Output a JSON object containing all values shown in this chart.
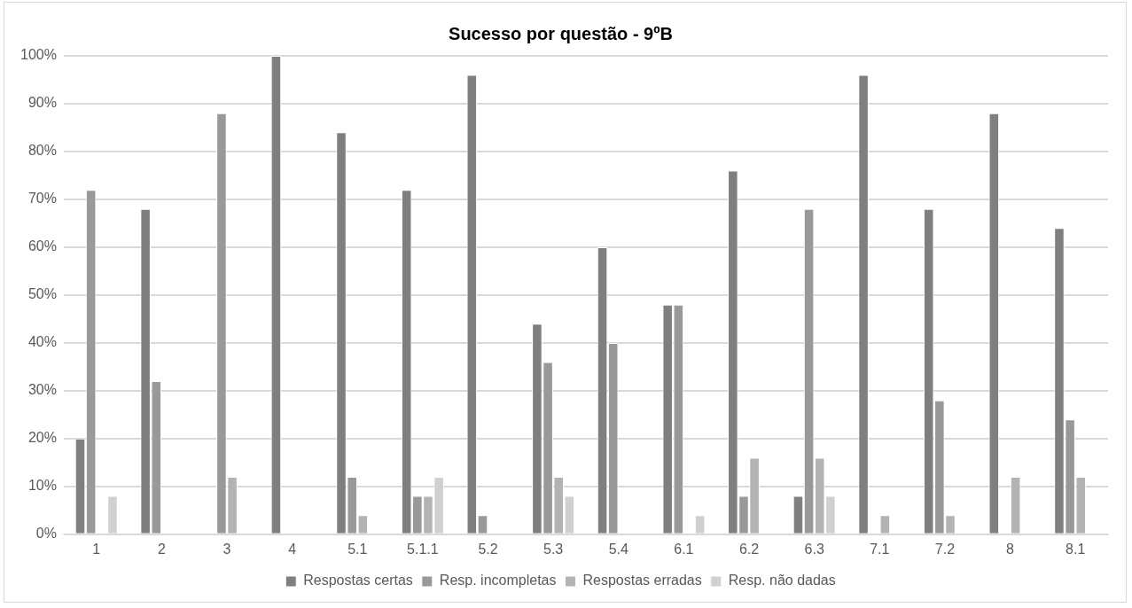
{
  "chart_data": {
    "type": "bar",
    "title": "Sucesso por questão - 9ºB",
    "categories": [
      "1",
      "2",
      "3",
      "4",
      "5.1",
      "5.1.1",
      "5.2",
      "5.3",
      "5.4",
      "6.1",
      "6.2",
      "6.3",
      "7.1",
      "7.2",
      "8",
      "8.1"
    ],
    "series": [
      {
        "name": "Respostas certas",
        "color": "#7f7f7f",
        "values": [
          20,
          68,
          0,
          100,
          84,
          72,
          96,
          44,
          60,
          48,
          76,
          8,
          96,
          68,
          88,
          64
        ]
      },
      {
        "name": "Resp. incompletas",
        "color": "#999999",
        "values": [
          72,
          32,
          88,
          0,
          12,
          8,
          4,
          36,
          40,
          48,
          8,
          68,
          0,
          28,
          0,
          24
        ]
      },
      {
        "name": "Respostas erradas",
        "color": "#b3b3b3",
        "values": [
          0,
          0,
          12,
          0,
          4,
          8,
          0,
          12,
          0,
          0,
          16,
          16,
          4,
          4,
          12,
          12
        ]
      },
      {
        "name": "Resp. não dadas",
        "color": "#d0d0d0",
        "values": [
          8,
          0,
          0,
          0,
          0,
          12,
          0,
          8,
          0,
          4,
          0,
          8,
          0,
          0,
          0,
          0
        ]
      }
    ],
    "ylim": [
      0,
      100
    ],
    "yticks": [
      {
        "value": 0,
        "label": "0%"
      },
      {
        "value": 10,
        "label": "10%"
      },
      {
        "value": 20,
        "label": "20%"
      },
      {
        "value": 30,
        "label": "30%"
      },
      {
        "value": 40,
        "label": "40%"
      },
      {
        "value": 50,
        "label": "50%"
      },
      {
        "value": 60,
        "label": "60%"
      },
      {
        "value": 70,
        "label": "70%"
      },
      {
        "value": 80,
        "label": "80%"
      },
      {
        "value": 90,
        "label": "90%"
      },
      {
        "value": 100,
        "label": "100%"
      }
    ],
    "grid": "y",
    "legend": "bottom"
  }
}
